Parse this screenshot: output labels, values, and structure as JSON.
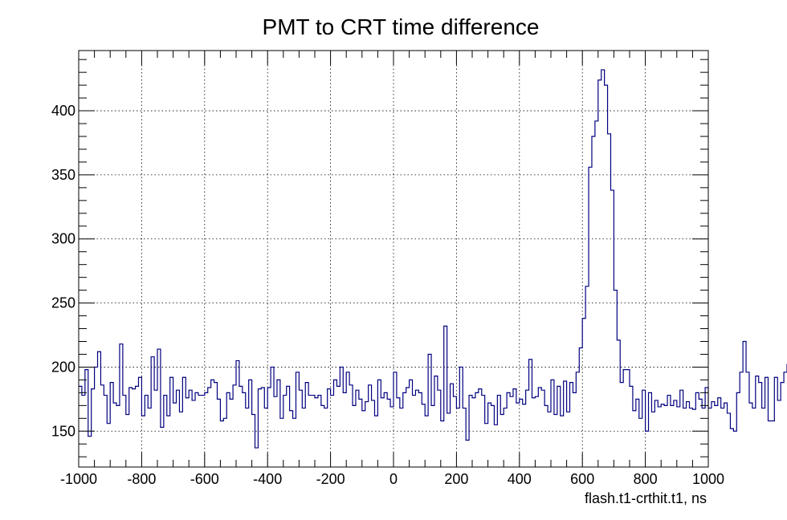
{
  "chart_data": {
    "type": "histogram",
    "title": "PMT to CRT time difference",
    "xlabel": "flash.t1-crthit.t1, ns",
    "ylabel": "",
    "xlim": [
      -1000,
      1000
    ],
    "ylim": [
      122,
      447
    ],
    "bin_width": 10,
    "x_ticks": [
      -1000,
      -800,
      -600,
      -400,
      -200,
      0,
      200,
      400,
      600,
      800,
      1000
    ],
    "y_ticks": [
      150,
      200,
      250,
      300,
      350,
      400
    ],
    "grid": true,
    "line_color": "#000080",
    "bin_edges_start": -1000,
    "values": [
      185,
      178,
      198,
      146,
      183,
      200,
      212,
      186,
      178,
      156,
      188,
      172,
      170,
      218,
      178,
      163,
      184,
      183,
      185,
      192,
      162,
      178,
      168,
      208,
      182,
      214,
      153,
      178,
      162,
      192,
      172,
      182,
      165,
      192,
      176,
      182,
      174,
      180,
      178,
      178,
      180,
      184,
      190,
      188,
      175,
      158,
      160,
      180,
      175,
      186,
      205,
      185,
      180,
      168,
      190,
      163,
      137,
      183,
      184,
      168,
      184,
      200,
      177,
      190,
      160,
      178,
      185,
      166,
      160,
      196,
      182,
      168,
      188,
      178,
      178,
      176,
      178,
      170,
      168,
      183,
      178,
      190,
      185,
      200,
      180,
      196,
      186,
      170,
      182,
      175,
      166,
      173,
      186,
      174,
      162,
      190,
      176,
      180,
      175,
      169,
      196,
      176,
      168,
      180,
      184,
      190,
      178,
      182,
      180,
      171,
      162,
      210,
      170,
      193,
      182,
      158,
      232,
      164,
      187,
      177,
      168,
      200,
      168,
      143,
      178,
      176,
      180,
      183,
      178,
      156,
      172,
      170,
      155,
      178,
      163,
      168,
      180,
      177,
      183,
      172,
      175,
      171,
      182,
      206,
      176,
      177,
      184,
      182,
      170,
      165,
      190,
      163,
      185,
      162,
      189,
      165,
      188,
      180,
      196,
      215,
      238,
      263,
      356,
      380,
      392,
      424,
      432,
      420,
      382,
      338,
      260,
      221,
      188,
      198,
      198,
      185,
      166,
      175,
      160,
      182,
      150,
      180,
      165,
      174,
      169,
      171,
      170,
      178,
      170,
      174,
      169,
      182,
      168,
      173,
      168,
      167,
      180,
      175,
      168,
      184,
      168,
      173,
      170,
      176,
      168,
      172,
      164,
      152,
      150,
      180,
      196,
      220,
      196,
      172,
      168,
      193,
      188,
      168,
      192,
      158,
      158,
      192,
      174,
      188,
      196,
      202,
      205,
      206
    ]
  }
}
